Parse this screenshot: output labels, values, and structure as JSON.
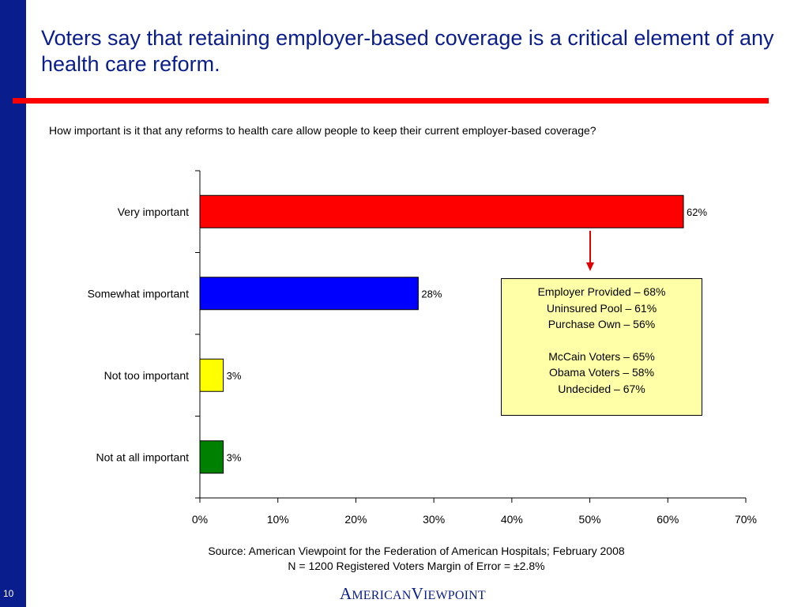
{
  "slide": {
    "title": "Voters say that retaining employer-based coverage is a critical element of any health care reform.",
    "question": "How important is it that any reforms to health care allow people to keep their current employer-based coverage?",
    "page_number": "10",
    "logo_text": "AmericanViewpoint",
    "source_line1": "Source: American Viewpoint for the Federation of American Hospitals; February 2008",
    "source_line2": "N = 1200 Registered Voters  Margin of Error = ±2.8%",
    "accent_color": "#ff0000",
    "sidebar_color": "#0a1d8c"
  },
  "callout": {
    "lines_group1": [
      "Employer Provided – 68%",
      "Uninsured Pool – 61%",
      "Purchase Own – 56%"
    ],
    "lines_group2": [
      "McCain Voters – 65%",
      "Obama Voters – 58%",
      "Undecided – 67%"
    ]
  },
  "chart_data": {
    "type": "bar",
    "orientation": "horizontal",
    "categories": [
      "Very important",
      "Somewhat important",
      "Not too important",
      "Not at all important"
    ],
    "values": [
      62,
      28,
      3,
      3
    ],
    "data_labels": [
      "62%",
      "28%",
      "3%",
      "3%"
    ],
    "colors": [
      "#ff0000",
      "#0000ff",
      "#ffff00",
      "#008000"
    ],
    "xlim": [
      0,
      70
    ],
    "xticks": [
      0,
      10,
      20,
      30,
      40,
      50,
      60,
      70
    ],
    "xtick_labels": [
      "0%",
      "10%",
      "20%",
      "30%",
      "40%",
      "50%",
      "60%",
      "70%"
    ],
    "grid": false,
    "legend": "none",
    "arrow_color": "#e00000"
  }
}
